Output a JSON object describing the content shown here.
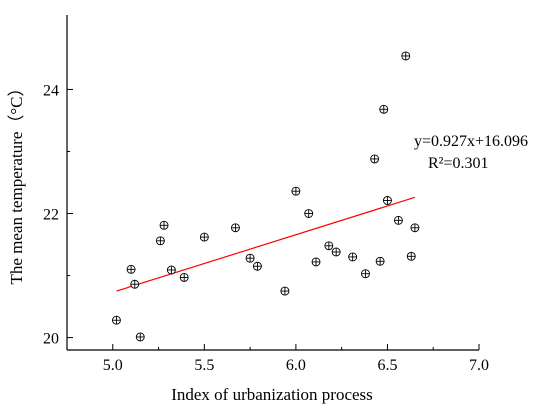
{
  "chart_data": {
    "type": "scatter",
    "xlabel": "Index of urbanization process",
    "ylabel": "The mean temperature（°C）",
    "xlim": [
      4.75,
      7.0
    ],
    "ylim": [
      19.8,
      25.2
    ],
    "x_ticks": [
      5.0,
      5.5,
      6.0,
      6.5,
      7.0
    ],
    "x_tick_labels": [
      "5.0",
      "5.5",
      "6.0",
      "6.5",
      "7.0"
    ],
    "y_ticks": [
      20,
      22,
      24
    ],
    "y_tick_labels": [
      "20",
      "22",
      "24"
    ],
    "grid": false,
    "marker": "circle-plus",
    "trendline_color": "#ff0000",
    "trendline": {
      "slope": 0.927,
      "intercept": 16.096,
      "x_range": [
        5.02,
        6.65
      ]
    },
    "annotations": {
      "equation": "y=0.927x+16.096",
      "r_squared": "R²=0.301"
    },
    "points": [
      {
        "x": 5.02,
        "y": 20.28
      },
      {
        "x": 5.1,
        "y": 21.1
      },
      {
        "x": 5.12,
        "y": 20.86
      },
      {
        "x": 5.15,
        "y": 20.01
      },
      {
        "x": 5.26,
        "y": 21.56
      },
      {
        "x": 5.28,
        "y": 21.81
      },
      {
        "x": 5.32,
        "y": 21.09
      },
      {
        "x": 5.39,
        "y": 20.97
      },
      {
        "x": 5.5,
        "y": 21.62
      },
      {
        "x": 5.67,
        "y": 21.77
      },
      {
        "x": 5.75,
        "y": 21.28
      },
      {
        "x": 5.79,
        "y": 21.15
      },
      {
        "x": 5.94,
        "y": 20.75
      },
      {
        "x": 6.0,
        "y": 22.36
      },
      {
        "x": 6.07,
        "y": 22.0
      },
      {
        "x": 6.11,
        "y": 21.22
      },
      {
        "x": 6.18,
        "y": 21.48
      },
      {
        "x": 6.22,
        "y": 21.38
      },
      {
        "x": 6.31,
        "y": 21.3
      },
      {
        "x": 6.38,
        "y": 21.03
      },
      {
        "x": 6.43,
        "y": 22.88
      },
      {
        "x": 6.46,
        "y": 21.23
      },
      {
        "x": 6.48,
        "y": 23.68
      },
      {
        "x": 6.5,
        "y": 22.21
      },
      {
        "x": 6.56,
        "y": 21.89
      },
      {
        "x": 6.6,
        "y": 24.54
      },
      {
        "x": 6.63,
        "y": 21.31
      },
      {
        "x": 6.65,
        "y": 21.77
      }
    ]
  }
}
